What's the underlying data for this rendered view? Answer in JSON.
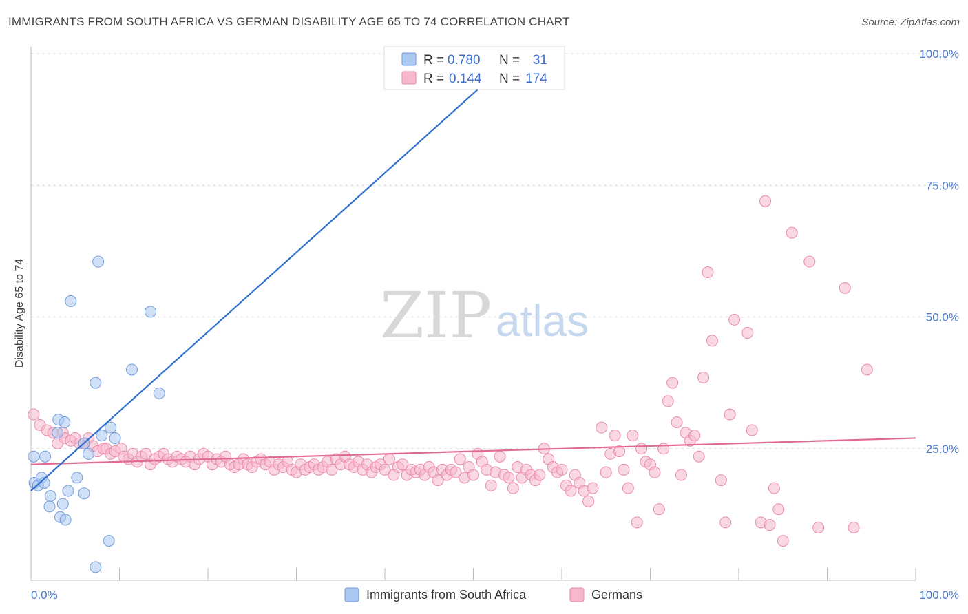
{
  "header": {
    "title": "IMMIGRANTS FROM SOUTH AFRICA VS GERMAN DISABILITY AGE 65 TO 74 CORRELATION CHART",
    "source": "Source: ZipAtlas.com"
  },
  "watermark": {
    "zip": "ZIP",
    "atlas": "atlas"
  },
  "legend": {
    "rows": [
      {
        "r_label": "R =",
        "r_value": "0.780",
        "n_label": "N =",
        "n_value": "31",
        "color": "#aac8f0"
      },
      {
        "r_label": "R =",
        "r_value": "0.144",
        "n_label": "N =",
        "n_value": "174",
        "color": "#f6b8cc"
      }
    ]
  },
  "bottom_legend": {
    "series1": "Immigrants from South Africa",
    "series2": "Germans"
  },
  "chart_data": {
    "type": "scatter",
    "title": "IMMIGRANTS FROM SOUTH AFRICA VS GERMAN DISABILITY AGE 65 TO 74 CORRELATION CHART",
    "xlabel": "",
    "ylabel": "Disability Age 65 to 74",
    "xlim": [
      0,
      100
    ],
    "ylim": [
      0,
      100
    ],
    "x_tick_labels": [
      "0.0%",
      "100.0%"
    ],
    "y_tick_labels": [
      "25.0%",
      "50.0%",
      "75.0%",
      "100.0%"
    ],
    "y_ticks": [
      25,
      50,
      75,
      100
    ],
    "grid": true,
    "legend_position": "top-center",
    "series": [
      {
        "name": "Immigrants from South Africa",
        "color": "#aac8f0",
        "stroke": "#6f9ad8",
        "trend": {
          "x": [
            0,
            55
          ],
          "y": [
            17,
            100
          ],
          "color": "#2e6fd0"
        },
        "points": [
          [
            0.3,
            23.5
          ],
          [
            0.4,
            18.5
          ],
          [
            0.8,
            18.0
          ],
          [
            1.2,
            19.5
          ],
          [
            1.6,
            23.5
          ],
          [
            2.2,
            16.0
          ],
          [
            2.1,
            14.0
          ],
          [
            3.0,
            28.0
          ],
          [
            3.1,
            30.5
          ],
          [
            3.3,
            12.0
          ],
          [
            3.6,
            14.5
          ],
          [
            3.9,
            11.5
          ],
          [
            3.8,
            30.0
          ],
          [
            4.2,
            17.0
          ],
          [
            4.5,
            53.0
          ],
          [
            5.2,
            19.5
          ],
          [
            6.0,
            16.5
          ],
          [
            6.5,
            24.0
          ],
          [
            7.3,
            37.5
          ],
          [
            7.6,
            60.5
          ],
          [
            8.8,
            7.5
          ],
          [
            7.3,
            2.5
          ],
          [
            9.0,
            29.0
          ],
          [
            9.5,
            27.0
          ],
          [
            11.4,
            40.0
          ],
          [
            13.5,
            51.0
          ],
          [
            14.5,
            35.5
          ],
          [
            6.0,
            26.0
          ],
          [
            1.5,
            18.5
          ],
          [
            8.0,
            27.5
          ],
          [
            55.0,
            100.0
          ]
        ]
      },
      {
        "name": "Germans",
        "color": "#f6b8cc",
        "stroke": "#e98aa8",
        "trend": {
          "x": [
            0,
            100
          ],
          "y": [
            22,
            27
          ],
          "color": "#e06a94"
        },
        "points": [
          [
            0.3,
            31.5
          ],
          [
            1.0,
            29.5
          ],
          [
            1.8,
            28.5
          ],
          [
            2.5,
            28.0
          ],
          [
            3.0,
            26.0
          ],
          [
            3.6,
            28.0
          ],
          [
            3.8,
            27.0
          ],
          [
            4.5,
            26.5
          ],
          [
            5.0,
            27.0
          ],
          [
            5.5,
            26.0
          ],
          [
            6.0,
            26.0
          ],
          [
            6.5,
            27.0
          ],
          [
            7.0,
            25.5
          ],
          [
            7.5,
            24.5
          ],
          [
            8.2,
            25.0
          ],
          [
            8.5,
            25.0
          ],
          [
            9.0,
            24.0
          ],
          [
            9.5,
            24.5
          ],
          [
            10.2,
            25.0
          ],
          [
            10.5,
            23.5
          ],
          [
            11.0,
            23.0
          ],
          [
            11.5,
            24.0
          ],
          [
            12.0,
            22.5
          ],
          [
            12.5,
            23.5
          ],
          [
            13.0,
            24.0
          ],
          [
            13.5,
            22.0
          ],
          [
            14.0,
            23.0
          ],
          [
            14.5,
            23.5
          ],
          [
            15.0,
            24.0
          ],
          [
            15.5,
            23.0
          ],
          [
            16.0,
            22.5
          ],
          [
            16.5,
            23.5
          ],
          [
            17.0,
            23.0
          ],
          [
            17.5,
            22.5
          ],
          [
            18.0,
            23.5
          ],
          [
            18.5,
            22.0
          ],
          [
            19.0,
            23.0
          ],
          [
            19.5,
            24.0
          ],
          [
            20.0,
            23.5
          ],
          [
            20.5,
            22.0
          ],
          [
            21.0,
            23.0
          ],
          [
            21.5,
            22.5
          ],
          [
            22.0,
            23.5
          ],
          [
            22.5,
            22.0
          ],
          [
            23.0,
            21.5
          ],
          [
            23.5,
            22.0
          ],
          [
            24.0,
            23.0
          ],
          [
            24.5,
            22.0
          ],
          [
            25.0,
            21.5
          ],
          [
            25.5,
            22.5
          ],
          [
            26.0,
            23.0
          ],
          [
            26.5,
            22.0
          ],
          [
            27.0,
            22.5
          ],
          [
            27.5,
            21.0
          ],
          [
            28.0,
            22.0
          ],
          [
            28.5,
            21.5
          ],
          [
            29.0,
            22.5
          ],
          [
            29.5,
            21.0
          ],
          [
            30.0,
            20.5
          ],
          [
            30.5,
            22.0
          ],
          [
            31.0,
            21.0
          ],
          [
            31.5,
            21.5
          ],
          [
            32.0,
            22.0
          ],
          [
            32.5,
            21.0
          ],
          [
            33.0,
            21.5
          ],
          [
            33.5,
            22.5
          ],
          [
            34.0,
            21.0
          ],
          [
            34.5,
            23.0
          ],
          [
            35.0,
            22.0
          ],
          [
            35.5,
            23.5
          ],
          [
            36.0,
            22.0
          ],
          [
            36.5,
            21.5
          ],
          [
            37.0,
            22.5
          ],
          [
            37.5,
            21.0
          ],
          [
            38.0,
            22.0
          ],
          [
            38.5,
            20.5
          ],
          [
            39.0,
            21.5
          ],
          [
            39.5,
            22.0
          ],
          [
            40.0,
            21.0
          ],
          [
            40.5,
            23.0
          ],
          [
            41.0,
            20.0
          ],
          [
            41.5,
            21.5
          ],
          [
            42.0,
            22.0
          ],
          [
            42.5,
            20.0
          ],
          [
            43.0,
            21.0
          ],
          [
            43.5,
            20.5
          ],
          [
            44.0,
            21.0
          ],
          [
            44.5,
            20.0
          ],
          [
            45.0,
            21.5
          ],
          [
            45.5,
            20.5
          ],
          [
            46.0,
            19.0
          ],
          [
            46.5,
            21.0
          ],
          [
            47.0,
            20.0
          ],
          [
            47.5,
            21.0
          ],
          [
            48.0,
            20.5
          ],
          [
            48.5,
            23.0
          ],
          [
            49.0,
            19.5
          ],
          [
            49.5,
            21.5
          ],
          [
            50.0,
            20.0
          ],
          [
            50.5,
            24.0
          ],
          [
            51.0,
            22.5
          ],
          [
            51.5,
            21.0
          ],
          [
            52.0,
            18.0
          ],
          [
            52.5,
            20.5
          ],
          [
            53.0,
            23.5
          ],
          [
            53.5,
            20.0
          ],
          [
            54.0,
            19.5
          ],
          [
            54.5,
            17.5
          ],
          [
            55.0,
            21.5
          ],
          [
            55.5,
            19.5
          ],
          [
            56.0,
            21.0
          ],
          [
            56.5,
            20.0
          ],
          [
            57.0,
            19.0
          ],
          [
            57.5,
            20.0
          ],
          [
            58.0,
            25.0
          ],
          [
            58.5,
            23.0
          ],
          [
            59.0,
            21.5
          ],
          [
            59.5,
            20.5
          ],
          [
            60.0,
            21.0
          ],
          [
            60.5,
            18.0
          ],
          [
            61.0,
            17.0
          ],
          [
            61.5,
            20.0
          ],
          [
            62.0,
            18.5
          ],
          [
            62.5,
            17.0
          ],
          [
            63.0,
            15.0
          ],
          [
            63.5,
            17.5
          ],
          [
            64.5,
            29.0
          ],
          [
            65.0,
            20.5
          ],
          [
            65.5,
            24.0
          ],
          [
            66.0,
            27.5
          ],
          [
            66.5,
            24.5
          ],
          [
            67.0,
            21.0
          ],
          [
            67.5,
            17.5
          ],
          [
            68.0,
            27.5
          ],
          [
            68.5,
            11.0
          ],
          [
            69.0,
            25.0
          ],
          [
            69.5,
            22.5
          ],
          [
            70.0,
            22.0
          ],
          [
            70.5,
            20.5
          ],
          [
            71.0,
            13.5
          ],
          [
            71.5,
            25.0
          ],
          [
            72.0,
            34.0
          ],
          [
            72.5,
            37.5
          ],
          [
            73.0,
            30.0
          ],
          [
            73.5,
            20.0
          ],
          [
            74.0,
            28.0
          ],
          [
            74.5,
            26.5
          ],
          [
            75.0,
            27.5
          ],
          [
            75.5,
            23.5
          ],
          [
            76.0,
            38.5
          ],
          [
            76.5,
            58.5
          ],
          [
            77.0,
            45.5
          ],
          [
            78.0,
            19.0
          ],
          [
            78.5,
            11.0
          ],
          [
            79.0,
            31.5
          ],
          [
            79.5,
            49.5
          ],
          [
            81.0,
            47.0
          ],
          [
            81.5,
            28.5
          ],
          [
            82.5,
            11.0
          ],
          [
            83.0,
            72.0
          ],
          [
            83.5,
            10.5
          ],
          [
            84.0,
            17.5
          ],
          [
            84.5,
            13.5
          ],
          [
            85.0,
            7.5
          ],
          [
            86.0,
            66.0
          ],
          [
            88.0,
            60.5
          ],
          [
            89.0,
            10.0
          ],
          [
            92.0,
            55.5
          ],
          [
            93.0,
            10.0
          ],
          [
            94.5,
            40.0
          ]
        ]
      }
    ]
  }
}
